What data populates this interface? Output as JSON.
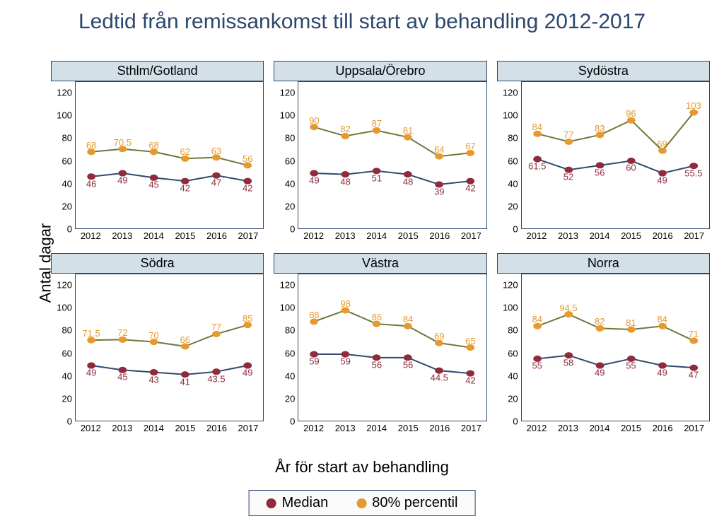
{
  "title": "Ledtid från remissankomst till start av behandling 2012-2017",
  "ylabel": "Antal dagar",
  "xlabel": "År för start av behandling",
  "years": [
    "2012",
    "2013",
    "2014",
    "2015",
    "2016",
    "2017"
  ],
  "ylim": [
    0,
    130
  ],
  "yticks": [
    0,
    20,
    40,
    60,
    80,
    100,
    120
  ],
  "grid_cols": 3,
  "grid_rows": 2,
  "colors": {
    "median_marker": "#8f2b3d",
    "median_line": "#2f4b6d",
    "p80_marker": "#e69a2e",
    "p80_line": "#6b7a3a",
    "panel_title_bg": "#d3e0e8",
    "panel_border": "#2c476b",
    "title_color": "#2c476b",
    "plot_bg": "#ffffff"
  },
  "marker_radius": 5,
  "line_width": 2,
  "label_fontsize": 13,
  "panels": [
    {
      "title": "Sthlm/Gotland",
      "median": [
        46,
        49,
        45,
        42,
        47,
        42
      ],
      "p80": [
        68,
        70.5,
        68,
        62,
        63,
        56
      ],
      "median_label_dy": 14,
      "p80_label_dy": -10
    },
    {
      "title": "Uppsala/Örebro",
      "median": [
        49,
        48,
        51,
        48,
        39,
        42
      ],
      "p80": [
        90,
        82,
        87,
        81,
        64,
        67
      ],
      "median_label_dy": 14,
      "p80_label_dy": -10
    },
    {
      "title": "Sydöstra",
      "median": [
        61.5,
        52,
        56,
        60,
        49,
        55.5
      ],
      "p80": [
        84,
        77,
        83,
        96,
        69,
        103
      ],
      "median_label_dy": 14,
      "p80_label_dy": -10
    },
    {
      "title": "Södra",
      "median": [
        49,
        45,
        43,
        41,
        43.5,
        49
      ],
      "p80": [
        71.5,
        72,
        70,
        66,
        77,
        85
      ],
      "median_label_dy": 14,
      "p80_label_dy": -10
    },
    {
      "title": "Västra",
      "median": [
        59,
        59,
        56,
        56,
        44.5,
        42
      ],
      "p80": [
        88,
        98,
        86,
        84,
        69,
        65
      ],
      "median_label_dy": 14,
      "p80_label_dy": -10
    },
    {
      "title": "Norra",
      "median": [
        55,
        58,
        49,
        55,
        49,
        47
      ],
      "p80": [
        84,
        94.5,
        82,
        81,
        84,
        71
      ],
      "median_label_dy": 14,
      "p80_label_dy": -10
    }
  ],
  "legend": {
    "median": "Median",
    "p80": "80% percentil"
  }
}
